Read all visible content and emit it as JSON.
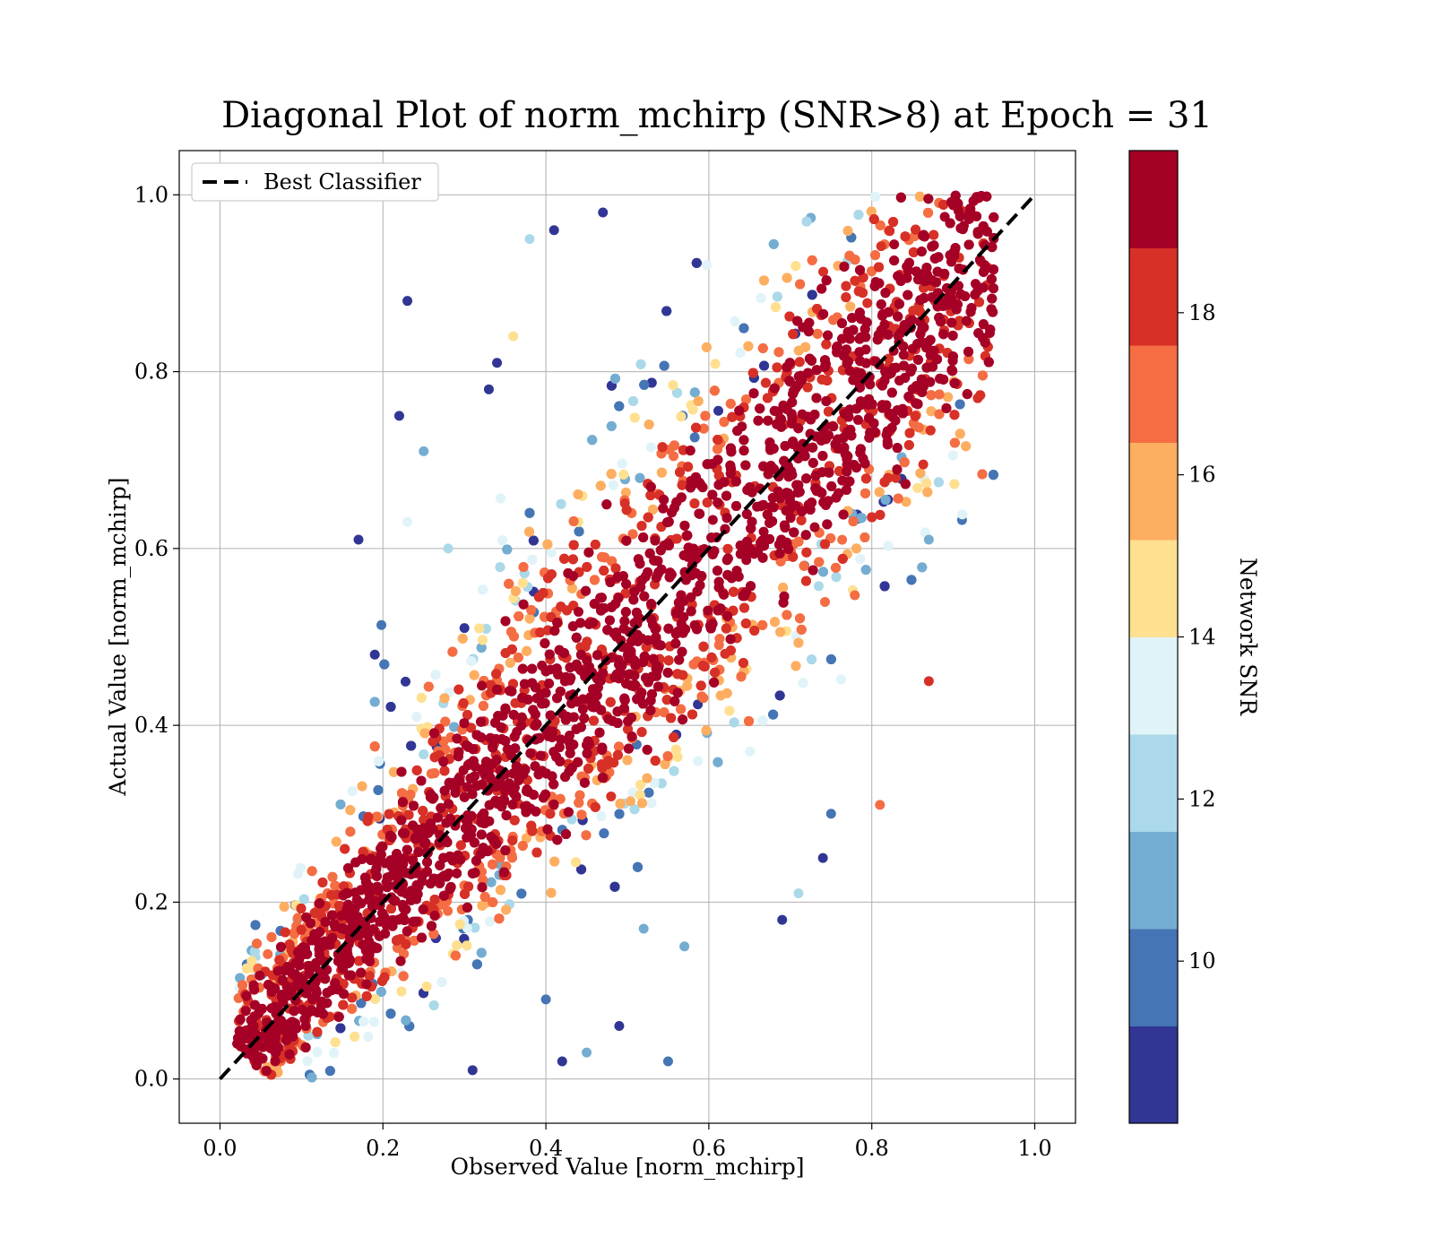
{
  "chart_data": {
    "type": "scatter",
    "title": "Diagonal Plot of norm_mchirp (SNR>8) at Epoch = 31",
    "xlabel": "Observed Value [norm_mchirp]",
    "ylabel": "Actual Value [norm_mchirp]",
    "xlim": [
      -0.05,
      1.05
    ],
    "ylim": [
      -0.05,
      1.05
    ],
    "xticks": [
      "0.0",
      "0.2",
      "0.4",
      "0.6",
      "0.8",
      "1.0"
    ],
    "yticks": [
      "0.0",
      "0.2",
      "0.4",
      "0.6",
      "0.8",
      "1.0"
    ],
    "grid": true,
    "legend": {
      "position": "top-left",
      "entries": [
        "Best Classifier"
      ]
    },
    "reference_line": {
      "name": "Best Classifier",
      "style": "dashed",
      "color": "#000000",
      "x": [
        0.0,
        1.0
      ],
      "y": [
        0.0,
        1.0
      ]
    },
    "colorbar": {
      "label": "Network SNR",
      "range": [
        8,
        20
      ],
      "ticks": [
        "10",
        "12",
        "14",
        "16",
        "18"
      ],
      "colors": [
        "#313695",
        "#4575b4",
        "#74add1",
        "#abd9e9",
        "#e0f3f8",
        "#fee090",
        "#fdae61",
        "#f46d43",
        "#d73027",
        "#a50026"
      ]
    },
    "series": [
      {
        "color_by": "Network SNR",
        "points": [
          {
            "x": 0.23,
            "y": 0.88,
            "snr": 8.5
          },
          {
            "x": 0.22,
            "y": 0.75,
            "snr": 8.5
          },
          {
            "x": 0.17,
            "y": 0.61,
            "snr": 8.5
          },
          {
            "x": 0.47,
            "y": 0.98,
            "snr": 8.5
          },
          {
            "x": 0.41,
            "y": 0.96,
            "snr": 8.5
          },
          {
            "x": 0.38,
            "y": 0.95,
            "snr": 12.5
          },
          {
            "x": 0.36,
            "y": 0.84,
            "snr": 14.5
          },
          {
            "x": 0.25,
            "y": 0.71,
            "snr": 10.5
          },
          {
            "x": 0.23,
            "y": 0.63,
            "snr": 13.5
          },
          {
            "x": 0.19,
            "y": 0.48,
            "snr": 8.5
          },
          {
            "x": 0.69,
            "y": 0.18,
            "snr": 8.5
          },
          {
            "x": 0.55,
            "y": 0.02,
            "snr": 9.5
          },
          {
            "x": 0.71,
            "y": 0.21,
            "snr": 12.0
          },
          {
            "x": 0.81,
            "y": 0.31,
            "snr": 17.0
          },
          {
            "x": 0.93,
            "y": 0.77,
            "snr": 18.5
          },
          {
            "x": 0.87,
            "y": 0.61,
            "snr": 11.0
          },
          {
            "x": 0.87,
            "y": 0.45,
            "snr": 18.5
          },
          {
            "x": 0.49,
            "y": 0.06,
            "snr": 8.5
          },
          {
            "x": 0.45,
            "y": 0.03,
            "snr": 10.5
          },
          {
            "x": 0.57,
            "y": 0.15,
            "snr": 10.5
          },
          {
            "x": 0.52,
            "y": 0.17,
            "snr": 11.0
          },
          {
            "x": 0.75,
            "y": 0.3,
            "snr": 10.0
          },
          {
            "x": 0.74,
            "y": 0.25,
            "snr": 9.0
          },
          {
            "x": 0.28,
            "y": 0.6,
            "snr": 12.0
          },
          {
            "x": 0.3,
            "y": 0.51,
            "snr": 8.5
          },
          {
            "x": 0.33,
            "y": 0.78,
            "snr": 8.5
          },
          {
            "x": 0.34,
            "y": 0.81,
            "snr": 9.0
          },
          {
            "x": 0.42,
            "y": 0.02,
            "snr": 8.5
          },
          {
            "x": 0.31,
            "y": 0.01,
            "snr": 9.0
          },
          {
            "x": 0.4,
            "y": 0.09,
            "snr": 9.5
          }
        ]
      }
    ]
  }
}
